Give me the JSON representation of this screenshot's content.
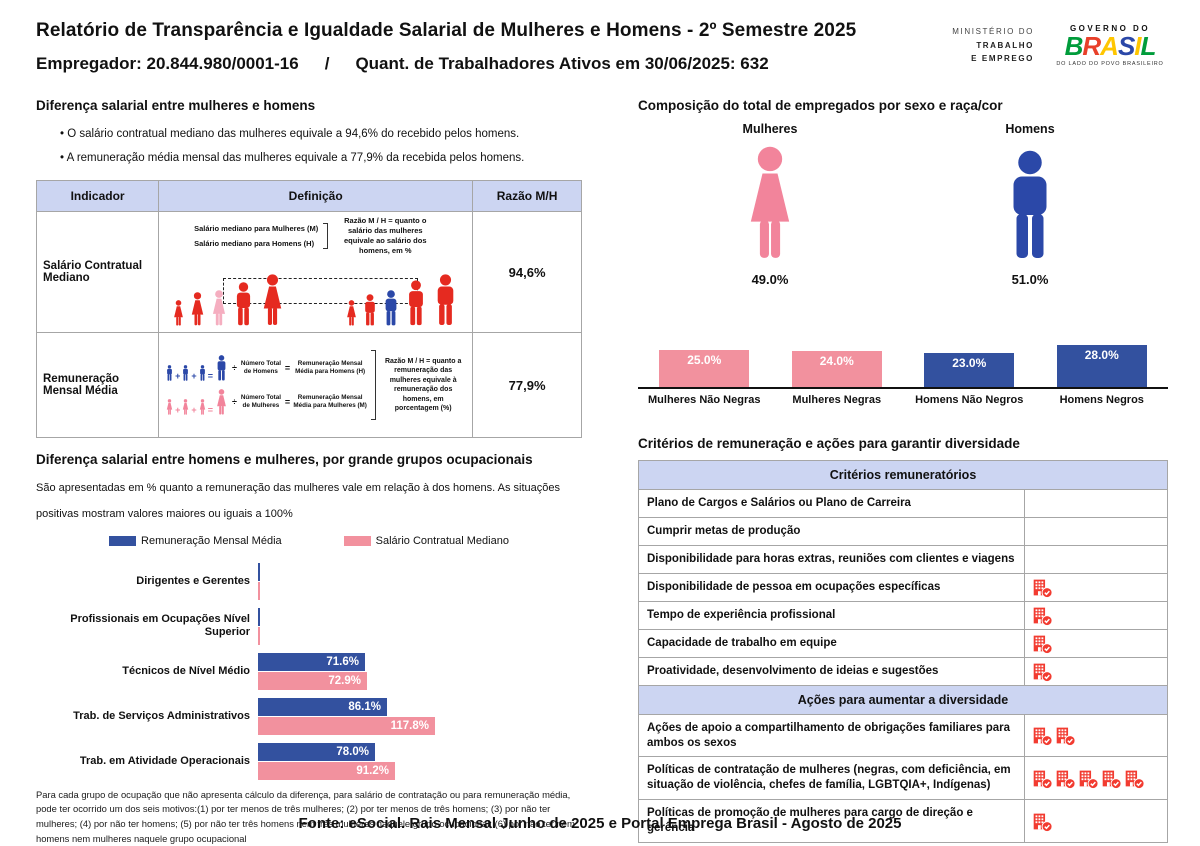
{
  "colors": {
    "pink": "#f2919e",
    "blue": "#33519f",
    "red": "#e52a20",
    "pink_light": "#f5aec0",
    "woman_pink": "#f2849b",
    "man_blue": "#2b48a8",
    "icon_red": "#f23b30",
    "header_bg": "#ccd5f2"
  },
  "header": {
    "title": "Relatório de Transparência e Igualdade Salarial de Mulheres e Homens - 2º Semestre 2025",
    "employer": "Empregador: 20.844.980/0001-16",
    "slash": "/",
    "active_workers": "Quant. de Trabalhadores Ativos em 30/06/2025: 632",
    "ministry_lines": [
      "MINISTÉRIO DO",
      "TRABALHO",
      "E EMPREGO"
    ],
    "gov_top": "GOVERNO DO",
    "gov_letters": [
      "B",
      "R",
      "A",
      "S",
      "I",
      "L"
    ],
    "gov_letter_colors": [
      "#009c3b",
      "#e8402a",
      "#ffc600",
      "#2b48a8",
      "#ffc600",
      "#009c3b"
    ],
    "gov_tagline": "DO LADO DO POVO BRASILEIRO"
  },
  "salary_gap": {
    "heading": "Diferença salarial entre mulheres e homens",
    "bullets": [
      "O salário contratual mediano das mulheres equivale a 94,6% do recebido pelos homens.",
      "A remuneração média mensal das mulheres equivale a 77,9% da recebida pelos homens."
    ],
    "table": {
      "headers": [
        "Indicador",
        "Definição",
        "Razão M/H"
      ],
      "rows": [
        {
          "indicator": "Salário Contratual Mediano",
          "ratio": "94,6%",
          "def_line1": "Salário mediano para Mulheres (M)",
          "def_line2": "Salário mediano para Homens (H)",
          "note": "Razão M / H = quanto o salário das mulheres equivale ao salário dos homens, em %",
          "figures_left": [
            "woman:red:26",
            "woman:red:34",
            "woman:pink_light:36",
            "man:red:44",
            "woman:red:52"
          ],
          "figures_right": [
            "woman:red:26",
            "man:red:32",
            "man:man_blue:36",
            "man:red:46",
            "man:red:52"
          ]
        },
        {
          "indicator": "Remuneração Mensal Média",
          "ratio": "77,9%",
          "men_divisor": "Número Total de Homens",
          "men_result": "Remuneração Mensal Média para Homens (H)",
          "women_divisor": "Número Total de Mulheres",
          "women_result": "Remuneração Mensal Média para Mulheres (M)",
          "note": "Razão M / H = quanto a remuneração das mulheres equivale à remuneração dos homens, em porcentagem (%)"
        }
      ]
    }
  },
  "composition": {
    "heading": "Composição do total de empregados por sexo e raça/cor"
  },
  "occupational": {
    "heading": "Diferença salarial entre homens e mulheres, por grande grupos ocupacionais",
    "subtitle": "São apresentadas em % quanto a remuneração das mulheres vale em relação à dos homens. As situações positivas mostram valores maiores ou iguais a 100%",
    "footnote": "Para cada grupo de ocupação que não apresenta cálculo da diferença, para salário de contratação ou para remuneração média, pode ter ocorrido um dos seis motivos:(1) por ter menos de três mulheres; (2) por ter menos de três homens; (3) por não ter mulheres; (4) por não ter homens; (5) por não ter três homens nem três mulheres naquele grupo ocupacional; (6) por não ter nem homens nem mulheres naquele grupo ocupacional"
  },
  "criteria": {
    "heading": "Critérios de remuneração e ações para garantir diversidade",
    "sections": [
      {
        "header": "Critérios remuneratórios",
        "rows": [
          {
            "label": "Plano de Cargos e Salários ou Plano de Carreira",
            "icons": 0
          },
          {
            "label": "Cumprir metas de produção",
            "icons": 0
          },
          {
            "label": "Disponibilidade para horas extras, reuniões com clientes e viagens",
            "icons": 0
          },
          {
            "label": "Disponibilidade de pessoa em ocupações específicas",
            "icons": 1
          },
          {
            "label": "Tempo de experiência profissional",
            "icons": 1
          },
          {
            "label": "Capacidade de trabalho em equipe",
            "icons": 1
          },
          {
            "label": "Proatividade, desenvolvimento de ideias e sugestões",
            "icons": 1
          }
        ]
      },
      {
        "header": "Ações para aumentar a diversidade",
        "rows": [
          {
            "label": "Ações de apoio a compartilhamento de obrigações familiares para ambos os sexos",
            "icons": 2
          },
          {
            "label": "Políticas de contratação de mulheres (negras, com deficiência, em situação de violência, chefes de família, LGBTQIA+, Indígenas)",
            "icons": 5
          },
          {
            "label": "Políticas de promoção de mulheres para cargo de direção e gerência",
            "icons": 1
          }
        ]
      }
    ]
  },
  "chart_data": [
    {
      "type": "pictogram",
      "title": "Composição do total de empregados por sexo e raça/cor",
      "categories": [
        "Mulheres",
        "Homens"
      ],
      "values": [
        49.0,
        51.0
      ],
      "labels": [
        "49.0%",
        "51.0%"
      ],
      "colors": [
        "#f2849b",
        "#2b48a8"
      ]
    },
    {
      "type": "bar",
      "title": "Composição do total de empregados por sexo e raça/cor — raça/cor",
      "categories": [
        "Mulheres Não Negras",
        "Mulheres Negras",
        "Homens Não Negros",
        "Homens Negros"
      ],
      "values": [
        25.0,
        24.0,
        23.0,
        28.0
      ],
      "labels": [
        "25.0%",
        "24.0%",
        "23.0%",
        "28.0%"
      ],
      "colors": [
        "#f2919e",
        "#f2919e",
        "#33519f",
        "#33519f"
      ],
      "ylim": [
        0,
        30
      ],
      "value_label_position": "inside-top"
    },
    {
      "type": "bar-horizontal-grouped",
      "title": "Diferença salarial entre homens e mulheres, por grande grupos ocupacionais",
      "categories": [
        "Dirigentes e Gerentes",
        "Profissionais em Ocupações Nível Superior",
        "Técnicos de Nível Médio",
        "Trab. de Serviços Administrativos",
        "Trab. em Atividade Operacionais"
      ],
      "series": [
        {
          "name": "Remuneração Mensal Média",
          "color": "#33519f",
          "values": [
            null,
            null,
            71.6,
            86.1,
            78.0
          ],
          "labels": [
            "",
            "",
            "71.6%",
            "86.1%",
            "78.0%"
          ]
        },
        {
          "name": "Salário Contratual Mediano",
          "color": "#f2919e",
          "values": [
            null,
            null,
            72.9,
            117.8,
            91.2
          ],
          "labels": [
            "",
            "",
            "72.9%",
            "117.8%",
            "91.2%"
          ]
        }
      ],
      "xlim": [
        0,
        120
      ],
      "legend_position": "top"
    }
  ],
  "footer": {
    "source": "Fonte: eSocial. Rais Mensal Junho de 2025 e Portal Emprega Brasil - Agosto de 2025"
  }
}
